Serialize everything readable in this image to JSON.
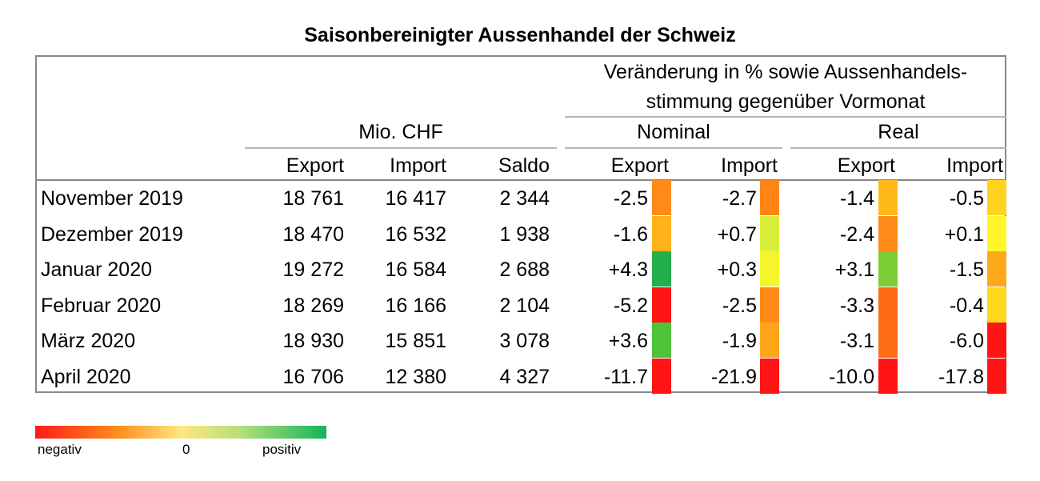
{
  "chart_data": {
    "type": "table",
    "title": "Saisonbereinigter Aussenhandel der Schweiz",
    "headers": {
      "group_change": [
        "Veränderung in % sowie Aussenhandels-",
        "stimmung gegenüber Vormonat"
      ],
      "mio_chf": "Mio. CHF",
      "nominal": "Nominal",
      "real": "Real",
      "columns": [
        "Export",
        "Import",
        "Saldo",
        "Export",
        "Import",
        "Export",
        "Import"
      ]
    },
    "rows": [
      {
        "label": "November 2019",
        "export": "18 761",
        "import": "16 417",
        "saldo": "2 344",
        "nom_export": "-2.5",
        "nom_import": "-2.7",
        "real_export": "-1.4",
        "real_import": "-0.5",
        "colors": [
          "#ff8a1a",
          "#ff8315",
          "#ffb81a",
          "#ffd21e"
        ]
      },
      {
        "label": "Dezember 2019",
        "export": "18 470",
        "import": "16 532",
        "saldo": "1 938",
        "nom_export": "-1.6",
        "nom_import": "+0.7",
        "real_export": "-2.4",
        "real_import": "+0.1",
        "colors": [
          "#ffb21a",
          "#d9ee3a",
          "#ff8c1a",
          "#fff52a"
        ]
      },
      {
        "label": "Januar 2020",
        "export": "19 272",
        "import": "16 584",
        "saldo": "2 688",
        "nom_export": "+4.3",
        "nom_import": "+0.3",
        "real_export": "+3.1",
        "real_import": "-1.5",
        "colors": [
          "#22b04c",
          "#f4f52a",
          "#7ccc36",
          "#ffa91a"
        ]
      },
      {
        "label": "Februar 2020",
        "export": "18 269",
        "import": "16 166",
        "saldo": "2 104",
        "nom_export": "-5.2",
        "nom_import": "-2.5",
        "real_export": "-3.3",
        "real_import": "-0.4",
        "colors": [
          "#ff1515",
          "#ff8a1a",
          "#ff6a15",
          "#ffd81e"
        ]
      },
      {
        "label": "März 2020",
        "export": "18 930",
        "import": "15 851",
        "saldo": "3 078",
        "nom_export": "+3.6",
        "nom_import": "-1.9",
        "real_export": "-3.1",
        "real_import": "-6.0",
        "colors": [
          "#4dc33a",
          "#ffa51a",
          "#ff6e15",
          "#ff1515"
        ]
      },
      {
        "label": "April 2020",
        "export": "16 706",
        "import": "12 380",
        "saldo": "4 327",
        "nom_export": "-11.7",
        "nom_import": "-21.9",
        "real_export": "-10.0",
        "real_import": "-17.8",
        "colors": [
          "#ff1515",
          "#ff1515",
          "#ff1515",
          "#ff1515"
        ]
      }
    ],
    "legend": {
      "negative": "negativ",
      "zero": "0",
      "positive": "positiv"
    }
  }
}
